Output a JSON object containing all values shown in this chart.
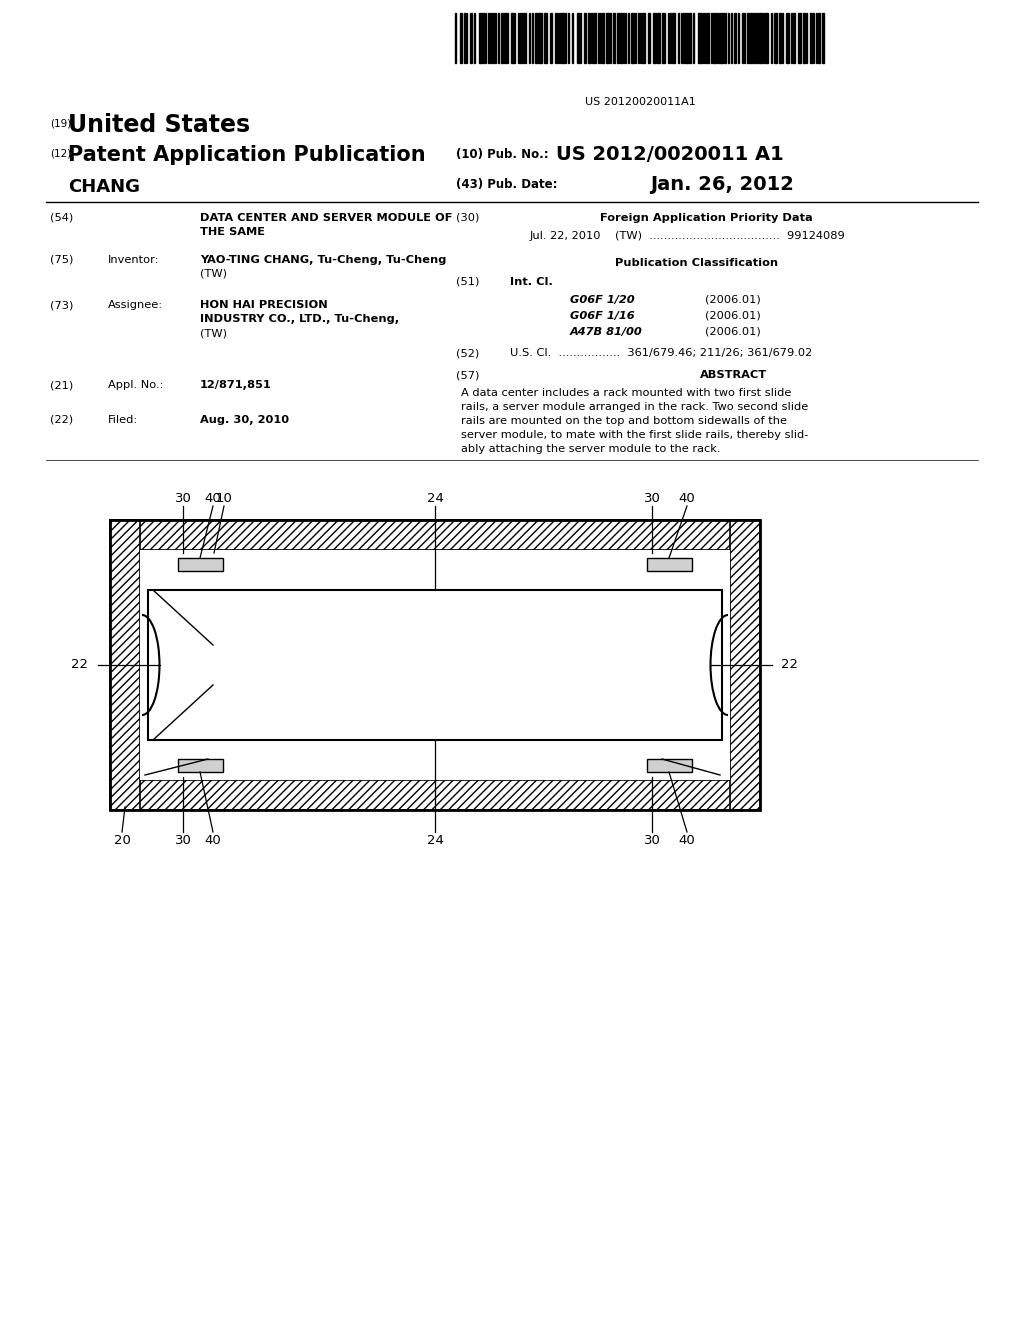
{
  "bg_color": "#ffffff",
  "barcode_text": "US 20120020011A1",
  "patent_number": "US 2012/0020011 A1",
  "pub_date": "Jan. 26, 2012",
  "title_country": "United States",
  "pub_type": "Patent Application Publication",
  "pub_no_label": "(10) Pub. No.:",
  "pub_date_label": "(43) Pub. Date:",
  "applicant": "CHANG",
  "field54_label": "(54)",
  "field54_text1": "DATA CENTER AND SERVER MODULE OF",
  "field54_text2": "THE SAME",
  "field30_label": "(30)",
  "field30_title": "Foreign Application Priority Data",
  "field30_data": "Jul. 22, 2010    (TW)  ....................................  99124089",
  "pub_class_title": "Publication Classification",
  "int_cl_label": "(51)",
  "int_cl_title": "Int. Cl.",
  "int_cl_1": "G06F 1/20",
  "int_cl_1_date": "(2006.01)",
  "int_cl_2": "G06F 1/16",
  "int_cl_2_date": "(2006.01)",
  "int_cl_3": "A47B 81/00",
  "int_cl_3_date": "(2006.01)",
  "us_cl_label": "(52)",
  "us_cl_text": "U.S. Cl.  .................  361/679.46; 211/26; 361/679.02",
  "abstract_label": "(57)",
  "abstract_title": "ABSTRACT",
  "abstract_lines": [
    "A data center includes a rack mounted with two first slide",
    "rails, a server module arranged in the rack. Two second slide",
    "rails are mounted on the top and bottom sidewalls of the",
    "server module, to mate with the first slide rails, thereby slid-",
    "ably attaching the server module to the rack."
  ],
  "field75_label": "(75)",
  "field75_title": "Inventor:",
  "field75_name": "YAO-TING CHANG, Tu-Cheng",
  "field75_country": "(TW)",
  "field73_label": "(73)",
  "field73_title": "Assignee:",
  "field73_name": "HON HAI PRECISION",
  "field73_name2": "INDUSTRY CO., LTD., Tu-Cheng",
  "field73_country": "(TW)",
  "field21_label": "(21)",
  "field21_title": "Appl. No.:",
  "field21_value": "12/871,851",
  "field22_label": "(22)",
  "field22_title": "Filed:",
  "field22_value": "Aug. 30, 2010"
}
